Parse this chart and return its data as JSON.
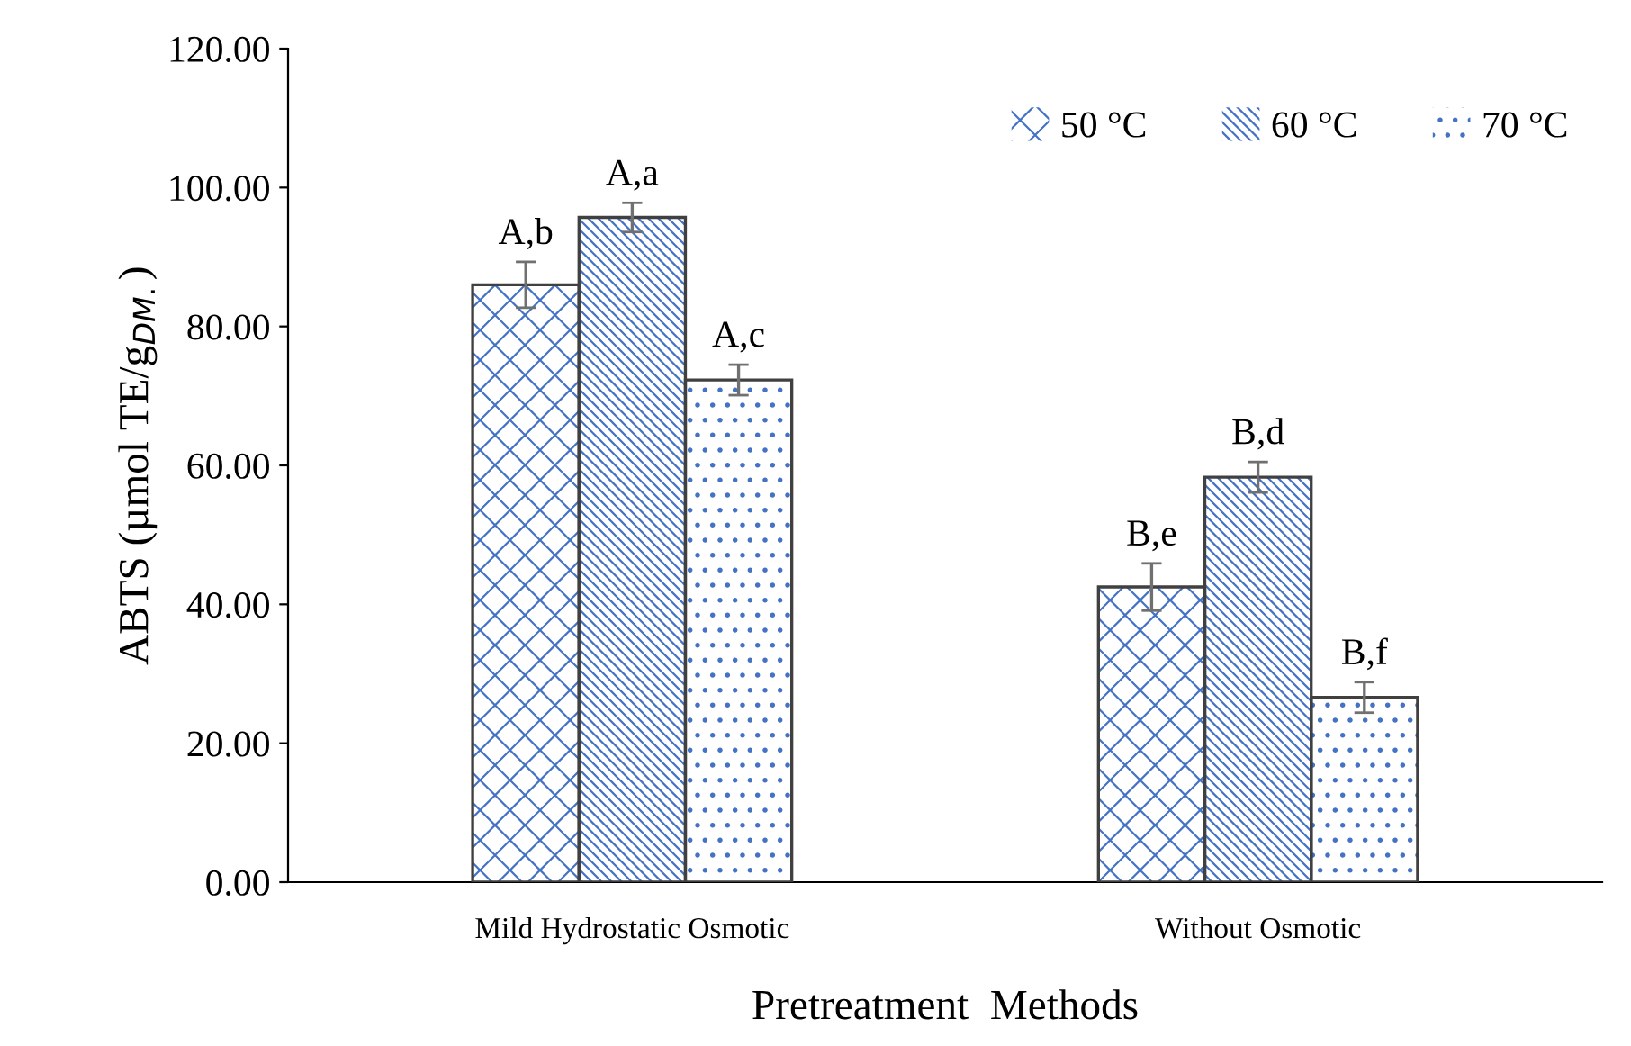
{
  "chart_data": {
    "type": "bar",
    "xlabel": "Pretreatment  Methods",
    "ylabel": "ABTS (µmol TE/g$_{DM.}$)",
    "categories": [
      "Mild Hydrostatic Osmotic",
      "Without Osmotic"
    ],
    "series": [
      {
        "name": "50 °C",
        "color": "#4472c4",
        "values": [
          86.0,
          42.5
        ],
        "errors": [
          3.3,
          3.4
        ],
        "value_labels": [
          "A,b",
          "B,e"
        ]
      },
      {
        "name": "60 °C",
        "color": "#4472c4",
        "values": [
          95.7,
          58.3
        ],
        "errors": [
          2.1,
          2.2
        ],
        "value_labels": [
          "A,a",
          "B,d"
        ]
      },
      {
        "name": "70 °C",
        "color": "#4472c4",
        "values": [
          72.3,
          26.6
        ],
        "errors": [
          2.2,
          2.2
        ],
        "value_labels": [
          "A,c",
          "B,f"
        ]
      }
    ],
    "ylim": [
      0,
      120
    ],
    "yticks": [
      {
        "value": 0,
        "label": "0.00"
      },
      {
        "value": 20,
        "label": "20.00"
      },
      {
        "value": 40,
        "label": "40.00"
      },
      {
        "value": 60,
        "label": "60.00"
      },
      {
        "value": 80,
        "label": "80.00"
      },
      {
        "value": 100,
        "label": "100.00"
      },
      {
        "value": 120,
        "label": "120.00"
      }
    ],
    "grid": false,
    "legend": "top right"
  }
}
